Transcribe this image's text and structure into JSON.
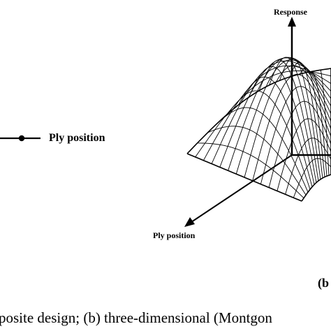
{
  "left_diagram": {
    "axis_label": "Ply position"
  },
  "right_diagram": {
    "vertical_axis_label": "Response",
    "diagonal_axis_label": "Ply position",
    "panel_letter": "(b"
  },
  "caption": {
    "text": "posite design; (b) three-dimensional (Montgon"
  }
}
